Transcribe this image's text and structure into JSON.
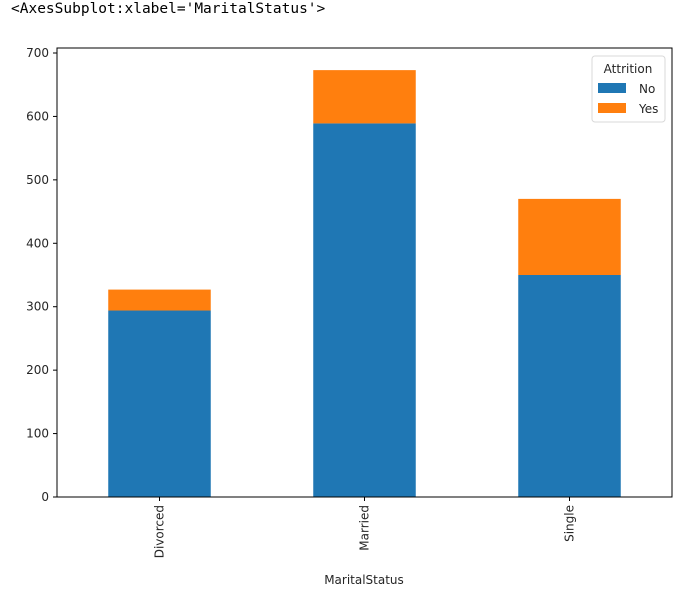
{
  "output_repr": "<AxesSubplot:xlabel='MaritalStatus'>",
  "colors": {
    "No": "#1f77b4",
    "Yes": "#ff7f0e",
    "axis": "#000000",
    "text": "#262626"
  },
  "chart_data": {
    "type": "bar",
    "stacked": true,
    "title": "",
    "xlabel": "MaritalStatus",
    "ylabel": "",
    "categories": [
      "Divorced",
      "Married",
      "Single"
    ],
    "series": [
      {
        "name": "No",
        "values": [
          294,
          589,
          350
        ]
      },
      {
        "name": "Yes",
        "values": [
          33,
          84,
          120
        ]
      }
    ],
    "ylim": [
      0,
      705
    ],
    "yticks": [
      0,
      100,
      200,
      300,
      400,
      500,
      600,
      700
    ],
    "grid": false,
    "legend": {
      "title": "Attrition",
      "position": "upper right",
      "entries": [
        "No",
        "Yes"
      ]
    },
    "xtick_rotation": 90
  }
}
